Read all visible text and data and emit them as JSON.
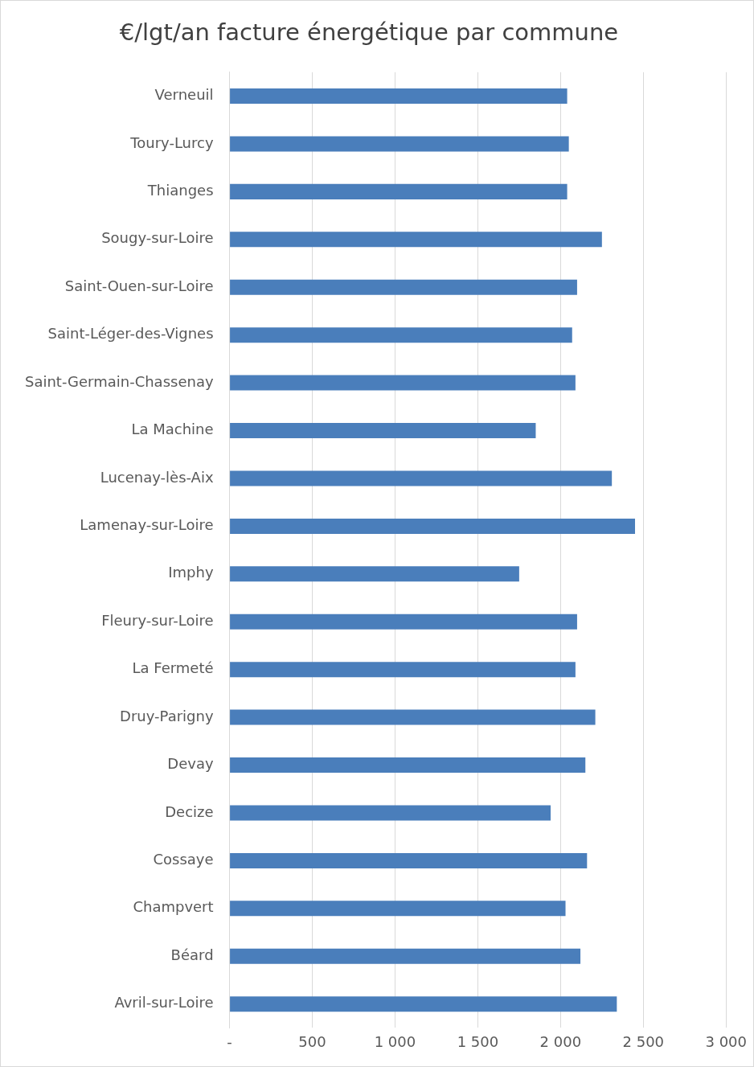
{
  "chart_data": {
    "type": "bar",
    "orientation": "horizontal",
    "title": "€/lgt/an facture énergétique par commune",
    "categories": [
      "Verneuil",
      "Toury-Lurcy",
      "Thianges",
      "Sougy-sur-Loire",
      "Saint-Ouen-sur-Loire",
      "Saint-Léger-des-Vignes",
      "Saint-Germain-Chassenay",
      "La Machine",
      "Lucenay-lès-Aix",
      "Lamenay-sur-Loire",
      "Imphy",
      "Fleury-sur-Loire",
      "La Fermeté",
      "Druy-Parigny",
      "Devay",
      "Decize",
      "Cossaye",
      "Champvert",
      "Béard",
      "Avril-sur-Loire"
    ],
    "values": [
      2040,
      2050,
      2040,
      2250,
      2100,
      2070,
      2090,
      1850,
      2310,
      2450,
      1750,
      2100,
      2090,
      2210,
      2150,
      1940,
      2160,
      2030,
      2120,
      2340
    ],
    "color": "#4a7ebb",
    "xlim": [
      0,
      3000
    ],
    "xticks": [
      {
        "value": 0,
        "label": "-"
      },
      500,
      {
        "value": 1000,
        "label": "1 000"
      },
      {
        "value": 1500,
        "label": "1 500"
      },
      {
        "value": 2000,
        "label": "2 000"
      },
      {
        "value": 2500,
        "label": "2 500"
      },
      {
        "value": 3000,
        "label": "3 000"
      }
    ],
    "grid": "x",
    "legend": false
  }
}
